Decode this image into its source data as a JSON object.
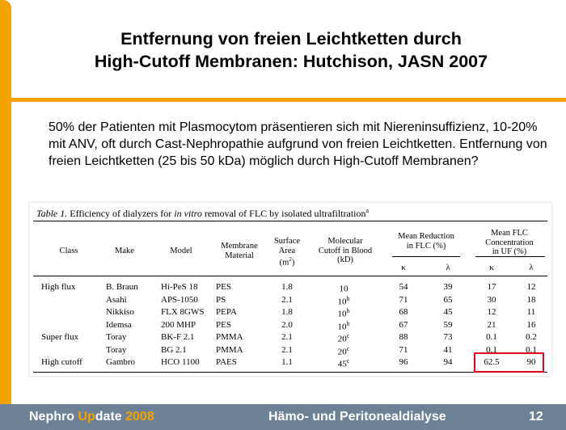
{
  "slide": {
    "title_line1": "Entfernung von freien Leichtketten durch",
    "title_line2": "High-Cutoff Membranen: Hutchison, JASN 2007",
    "body": "50% der Patienten mit Plasmocytom präsentieren sich mit Niereninsuffizienz, 10-20% mit ANV, oft durch Cast-Nephropathie aufgrund von freien Leichtketten. Entfernung von freien Leichtketten (25 bis 50 kDa) möglich durch High-Cutoff Membranen?"
  },
  "table": {
    "caption_prefix": "Table 1.",
    "caption_a": " Efficiency of dialyzers for ",
    "caption_italic": "in vitro",
    "caption_b": " removal of FLC by isolated ultrafiltration",
    "caption_sup": "a",
    "headers": {
      "class": "Class",
      "make": "Make",
      "model": "Model",
      "membrane_1": "Membrane",
      "membrane_2": "Material",
      "surface_1": "Surface",
      "surface_2": "Area",
      "surface_3": "(m",
      "surface_sup": "2",
      "surface_end": ")",
      "cutoff_1": "Molecular",
      "cutoff_2": "Cutoff in Blood",
      "cutoff_3": "(kD)",
      "reduction_1": "Mean Reduction",
      "reduction_2": "in FLC (%)",
      "conc_1": "Mean FLC",
      "conc_2": "Concentration",
      "conc_3": "in UF (%)",
      "kappa": "κ",
      "lambda": "λ"
    },
    "rows": [
      {
        "cls": "High flux",
        "make": "B. Braun",
        "model": "Hi-PeS 18",
        "material": "PES",
        "area": "1.8",
        "cutoff": "10",
        "cutoff_sup": "",
        "red_k": "54",
        "red_l": "39",
        "conc_k": "17",
        "conc_l": "12"
      },
      {
        "cls": "",
        "make": "Asahi",
        "model": "APS-1050",
        "material": "PS",
        "area": "2.1",
        "cutoff": "10",
        "cutoff_sup": "b",
        "red_k": "71",
        "red_l": "65",
        "conc_k": "30",
        "conc_l": "18"
      },
      {
        "cls": "",
        "make": "Nikkiso",
        "model": "FLX 8GWS",
        "material": "PEPA",
        "area": "1.8",
        "cutoff": "10",
        "cutoff_sup": "b",
        "red_k": "68",
        "red_l": "45",
        "conc_k": "12",
        "conc_l": "11"
      },
      {
        "cls": "",
        "make": "Idemsa",
        "model": "200 MHP",
        "material": "PES",
        "area": "2.0",
        "cutoff": "10",
        "cutoff_sup": "b",
        "red_k": "67",
        "red_l": "59",
        "conc_k": "21",
        "conc_l": "16"
      },
      {
        "cls": "Super flux",
        "make": "Toray",
        "model": "BK-F 2.1",
        "material": "PMMA",
        "area": "2.1",
        "cutoff": "20",
        "cutoff_sup": "c",
        "red_k": "88",
        "red_l": "73",
        "conc_k": "0.1",
        "conc_l": "0.2"
      },
      {
        "cls": "",
        "make": "Toray",
        "model": "BG 2.1",
        "material": "PMMA",
        "area": "2.1",
        "cutoff": "20",
        "cutoff_sup": "c",
        "red_k": "71",
        "red_l": "41",
        "conc_k": "0.1",
        "conc_l": "0.1"
      },
      {
        "cls": "High cutoff",
        "make": "Gambro",
        "model": "HCO 1100",
        "material": "PAES",
        "area": "1.1",
        "cutoff": "45",
        "cutoff_sup": "c",
        "red_k": "96",
        "red_l": "94",
        "conc_k": "62.5",
        "conc_l": "90"
      }
    ]
  },
  "footer": {
    "brand_a": "Nephro ",
    "brand_up": "Up",
    "brand_b": "date ",
    "brand_year": "2008",
    "section": "Hämo- und Peritonealdialyse",
    "page": "12"
  },
  "colors": {
    "accent": "#f4a300",
    "footer_bg": "#6d8196",
    "highlight": "#e2001a"
  }
}
